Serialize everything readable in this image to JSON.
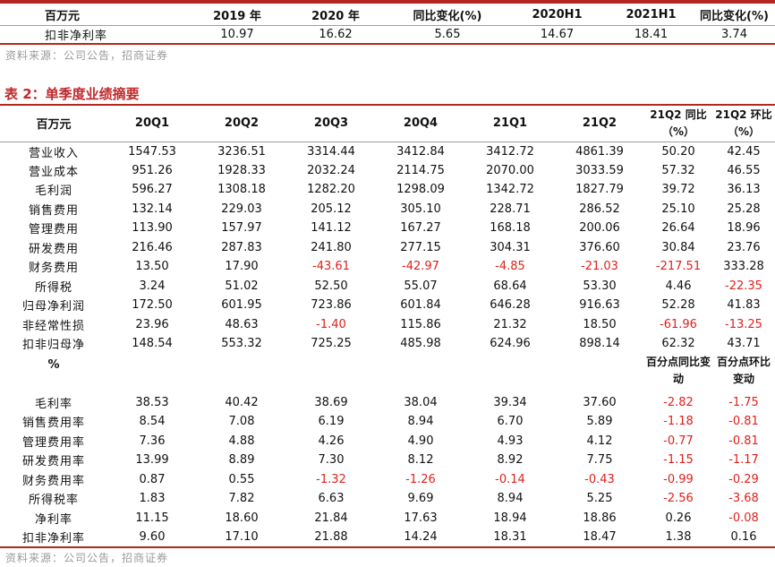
{
  "t1": {
    "header": [
      "百万元",
      "2019 年",
      "2020 年",
      "同比变化(%)",
      "2020H1",
      "2021H1",
      "同比变化(%)"
    ],
    "row": [
      "扣非净利率",
      "10.97",
      "16.62",
      "5.65",
      "14.67",
      "18.41",
      "3.74"
    ]
  },
  "source1": "资料来源：公司公告，招商证券",
  "caption": "表 2：单季度业绩摘要",
  "t2": {
    "header": [
      "百万元",
      "20Q1",
      "20Q2",
      "20Q3",
      "20Q4",
      "21Q1",
      "21Q2",
      "21Q2 同比（%）",
      "21Q2 环比（%）"
    ],
    "rows": [
      [
        "营业收入",
        "1547.53",
        "3236.51",
        "3314.44",
        "3412.84",
        "3412.72",
        "4861.39",
        "50.20",
        "42.45"
      ],
      [
        "营业成本",
        "951.26",
        "1928.33",
        "2032.24",
        "2114.75",
        "2070.00",
        "3033.59",
        "57.32",
        "46.55"
      ],
      [
        "毛利润",
        "596.27",
        "1308.18",
        "1282.20",
        "1298.09",
        "1342.72",
        "1827.79",
        "39.72",
        "36.13"
      ],
      [
        "销售费用",
        "132.14",
        "229.03",
        "205.12",
        "305.10",
        "228.71",
        "286.52",
        "25.10",
        "25.28"
      ],
      [
        "管理费用",
        "113.90",
        "157.97",
        "141.12",
        "167.27",
        "168.18",
        "200.06",
        "26.64",
        "18.96"
      ],
      [
        "研发费用",
        "216.46",
        "287.83",
        "241.80",
        "277.15",
        "304.31",
        "376.60",
        "30.84",
        "23.76"
      ],
      [
        "财务费用",
        "13.50",
        "17.90",
        "-43.61",
        "-42.97",
        "-4.85",
        "-21.03",
        "-217.51",
        "333.28"
      ],
      [
        "所得税",
        "3.24",
        "51.02",
        "52.50",
        "55.07",
        "68.64",
        "53.30",
        "4.46",
        "-22.35"
      ],
      [
        "归母净利润",
        "172.50",
        "601.95",
        "723.86",
        "601.84",
        "646.28",
        "916.63",
        "52.28",
        "41.83"
      ],
      [
        "非经常性损",
        "23.96",
        "48.63",
        "-1.40",
        "115.86",
        "21.32",
        "18.50",
        "-61.96",
        "-13.25"
      ],
      [
        "扣非归母净",
        "148.54",
        "553.32",
        "725.25",
        "485.98",
        "624.96",
        "898.14",
        "62.32",
        "43.71"
      ]
    ],
    "pct_header": [
      "%",
      "百分点同比变动",
      "百分点环比变动"
    ],
    "pct_rows": [
      [
        "毛利率",
        "38.53",
        "40.42",
        "38.69",
        "38.04",
        "39.34",
        "37.60",
        "-2.82",
        "-1.75"
      ],
      [
        "销售费用率",
        "8.54",
        "7.08",
        "6.19",
        "8.94",
        "6.70",
        "5.89",
        "-1.18",
        "-0.81"
      ],
      [
        "管理费用率",
        "7.36",
        "4.88",
        "4.26",
        "4.90",
        "4.93",
        "4.12",
        "-0.77",
        "-0.81"
      ],
      [
        "研发费用率",
        "13.99",
        "8.89",
        "7.30",
        "8.12",
        "8.92",
        "7.75",
        "-1.15",
        "-1.17"
      ],
      [
        "财务费用率",
        "0.87",
        "0.55",
        "-1.32",
        "-1.26",
        "-0.14",
        "-0.43",
        "-0.99",
        "-0.29"
      ],
      [
        "所得税率",
        "1.83",
        "7.82",
        "6.63",
        "9.69",
        "8.94",
        "5.25",
        "-2.56",
        "-3.68"
      ],
      [
        "净利率",
        "11.15",
        "18.60",
        "21.84",
        "17.63",
        "18.94",
        "18.86",
        "0.26",
        "-0.08"
      ],
      [
        "扣非净利率",
        "9.60",
        "17.10",
        "21.88",
        "14.24",
        "18.31",
        "18.47",
        "1.38",
        "0.16"
      ]
    ]
  },
  "source2": "资料来源：公司公告，招商证券",
  "colors": {
    "rule": "#b5261f",
    "caption": "#c0282a",
    "negative": "#e0201b",
    "source": "#9a9a9a"
  }
}
